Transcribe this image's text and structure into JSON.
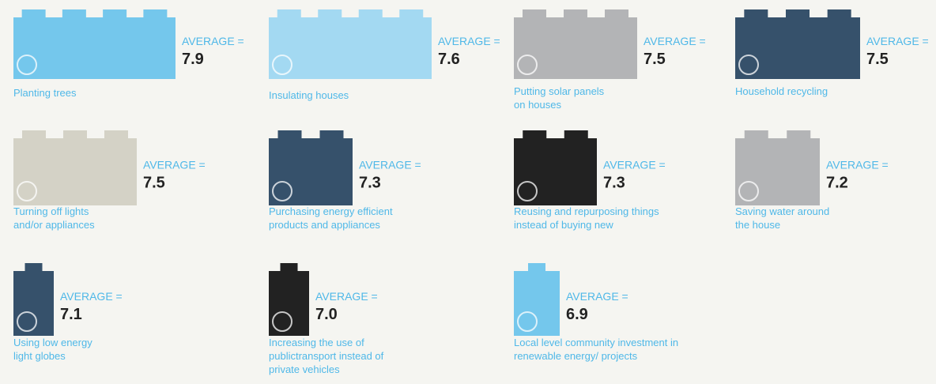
{
  "items": [
    {
      "label_lines": [
        "Planting trees"
      ],
      "average_label": "AVERAGE =",
      "value": "7.9"
    },
    {
      "label_lines": [
        "Insulating houses"
      ],
      "average_label": "AVERAGE =",
      "value": "7.6"
    },
    {
      "label_lines": [
        "Putting solar panels",
        "on houses"
      ],
      "average_label": "AVERAGE =",
      "value": "7.5"
    },
    {
      "label_lines": [
        "Household recycling"
      ],
      "average_label": "AVERAGE =",
      "value": "7.5"
    },
    {
      "label_lines": [
        "Turning off lights",
        "and/or appliances"
      ],
      "average_label": "AVERAGE =",
      "value": "7.5"
    },
    {
      "label_lines": [
        "Purchasing energy efficient",
        "products and appliances"
      ],
      "average_label": "AVERAGE =",
      "value": "7.3"
    },
    {
      "label_lines": [
        "Reusing and repurposing things",
        "instead of buying new"
      ],
      "average_label": "AVERAGE =",
      "value": "7.3"
    },
    {
      "label_lines": [
        "Saving water around",
        "the house"
      ],
      "average_label": "AVERAGE =",
      "value": "7.2"
    },
    {
      "label_lines": [
        "Using low energy",
        "light globes"
      ],
      "average_label": "AVERAGE =",
      "value": "7.1"
    },
    {
      "label_lines": [
        "Increasing the use of",
        "publictransport instead of",
        "private vehicles"
      ],
      "average_label": "AVERAGE =",
      "value": "7.0"
    },
    {
      "label_lines": [
        "Local level community investment in",
        "renewable energy/ projects"
      ],
      "average_label": "AVERAGE =",
      "value": "6.9"
    }
  ]
}
